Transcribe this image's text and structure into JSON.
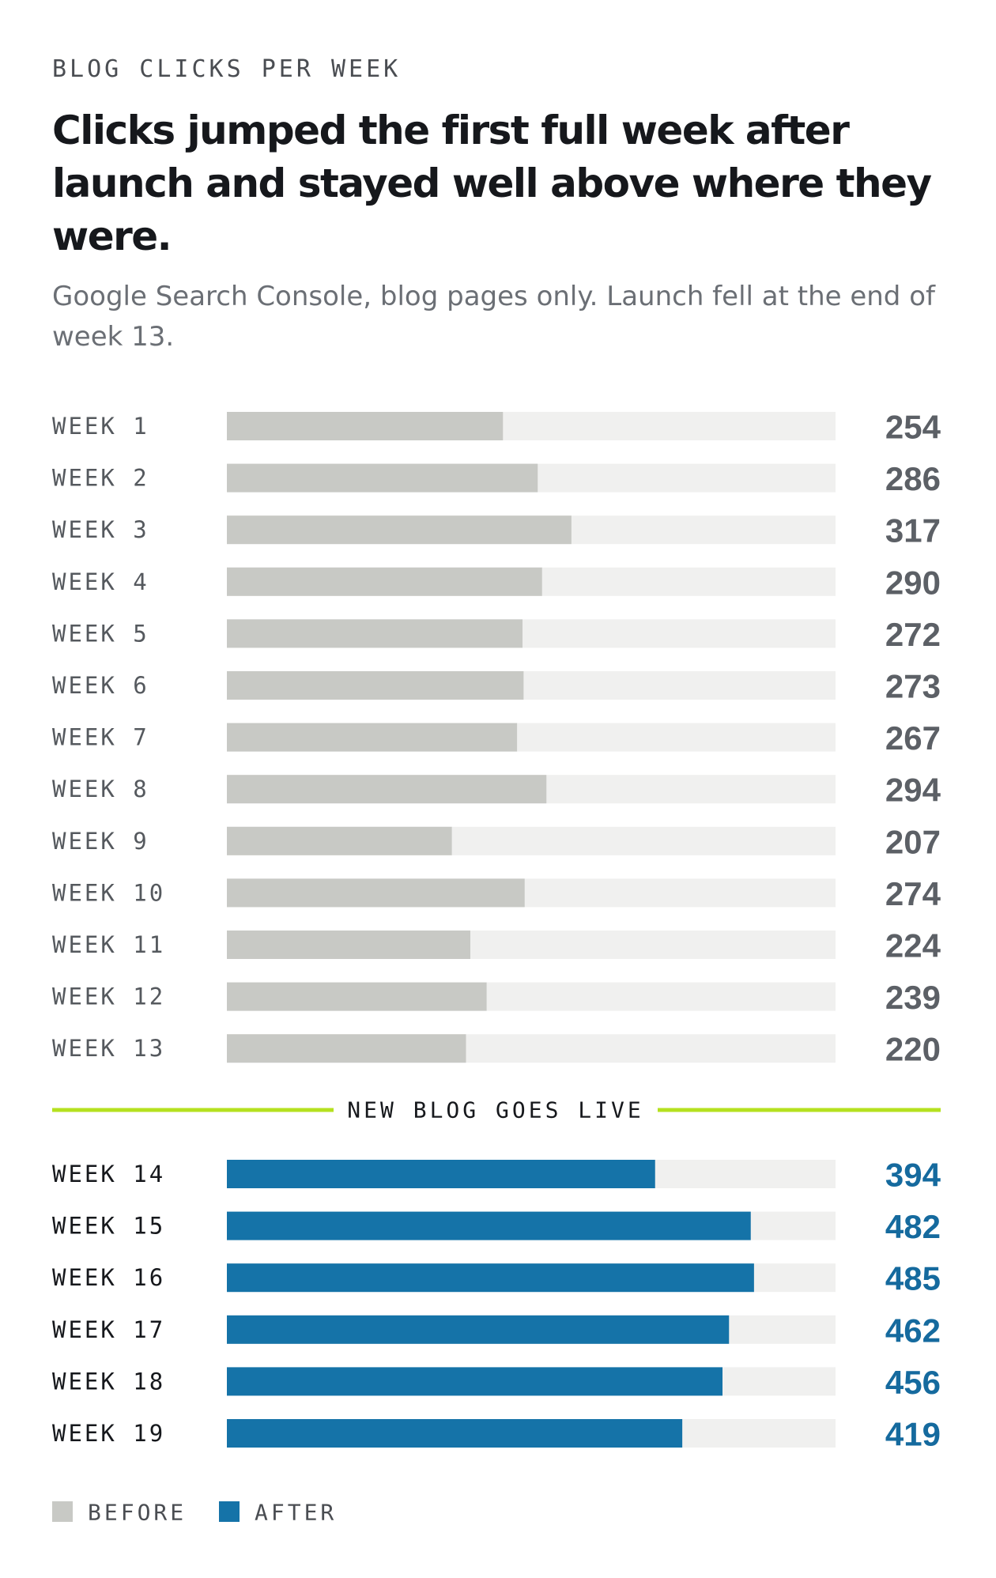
{
  "eyebrow": "BLOG CLICKS PER WEEK",
  "title": "Clicks jumped the first full week after launch and stayed well above where they were.",
  "subtitle": "Google Search Console, blog pages only. Launch fell at the end of week 13.",
  "colors": {
    "before_bar": "#c8c9c5",
    "after_bar": "#1573a8",
    "track": "#f0f0ef",
    "divider_line": "#b5e11f"
  },
  "chart_data": {
    "type": "bar",
    "orientation": "horizontal",
    "categories": [
      "WEEK 1",
      "WEEK 2",
      "WEEK 3",
      "WEEK 4",
      "WEEK 5",
      "WEEK 6",
      "WEEK 7",
      "WEEK 8",
      "WEEK 9",
      "WEEK 10",
      "WEEK 11",
      "WEEK 12",
      "WEEK 13",
      "WEEK 14",
      "WEEK 15",
      "WEEK 16",
      "WEEK 17",
      "WEEK 18",
      "WEEK 19"
    ],
    "values": [
      254,
      286,
      317,
      290,
      272,
      273,
      267,
      294,
      207,
      274,
      224,
      239,
      220,
      394,
      482,
      485,
      462,
      456,
      419
    ],
    "groups": [
      "before",
      "before",
      "before",
      "before",
      "before",
      "before",
      "before",
      "before",
      "before",
      "before",
      "before",
      "before",
      "before",
      "after",
      "after",
      "after",
      "after",
      "after",
      "after"
    ],
    "xlim": [
      0,
      560
    ],
    "annotation": "NEW BLOG GOES LIVE",
    "legend": [
      {
        "key": "before",
        "label": "BEFORE"
      },
      {
        "key": "after",
        "label": "AFTER"
      }
    ],
    "legend_position": "bottom-left",
    "grid": false
  }
}
